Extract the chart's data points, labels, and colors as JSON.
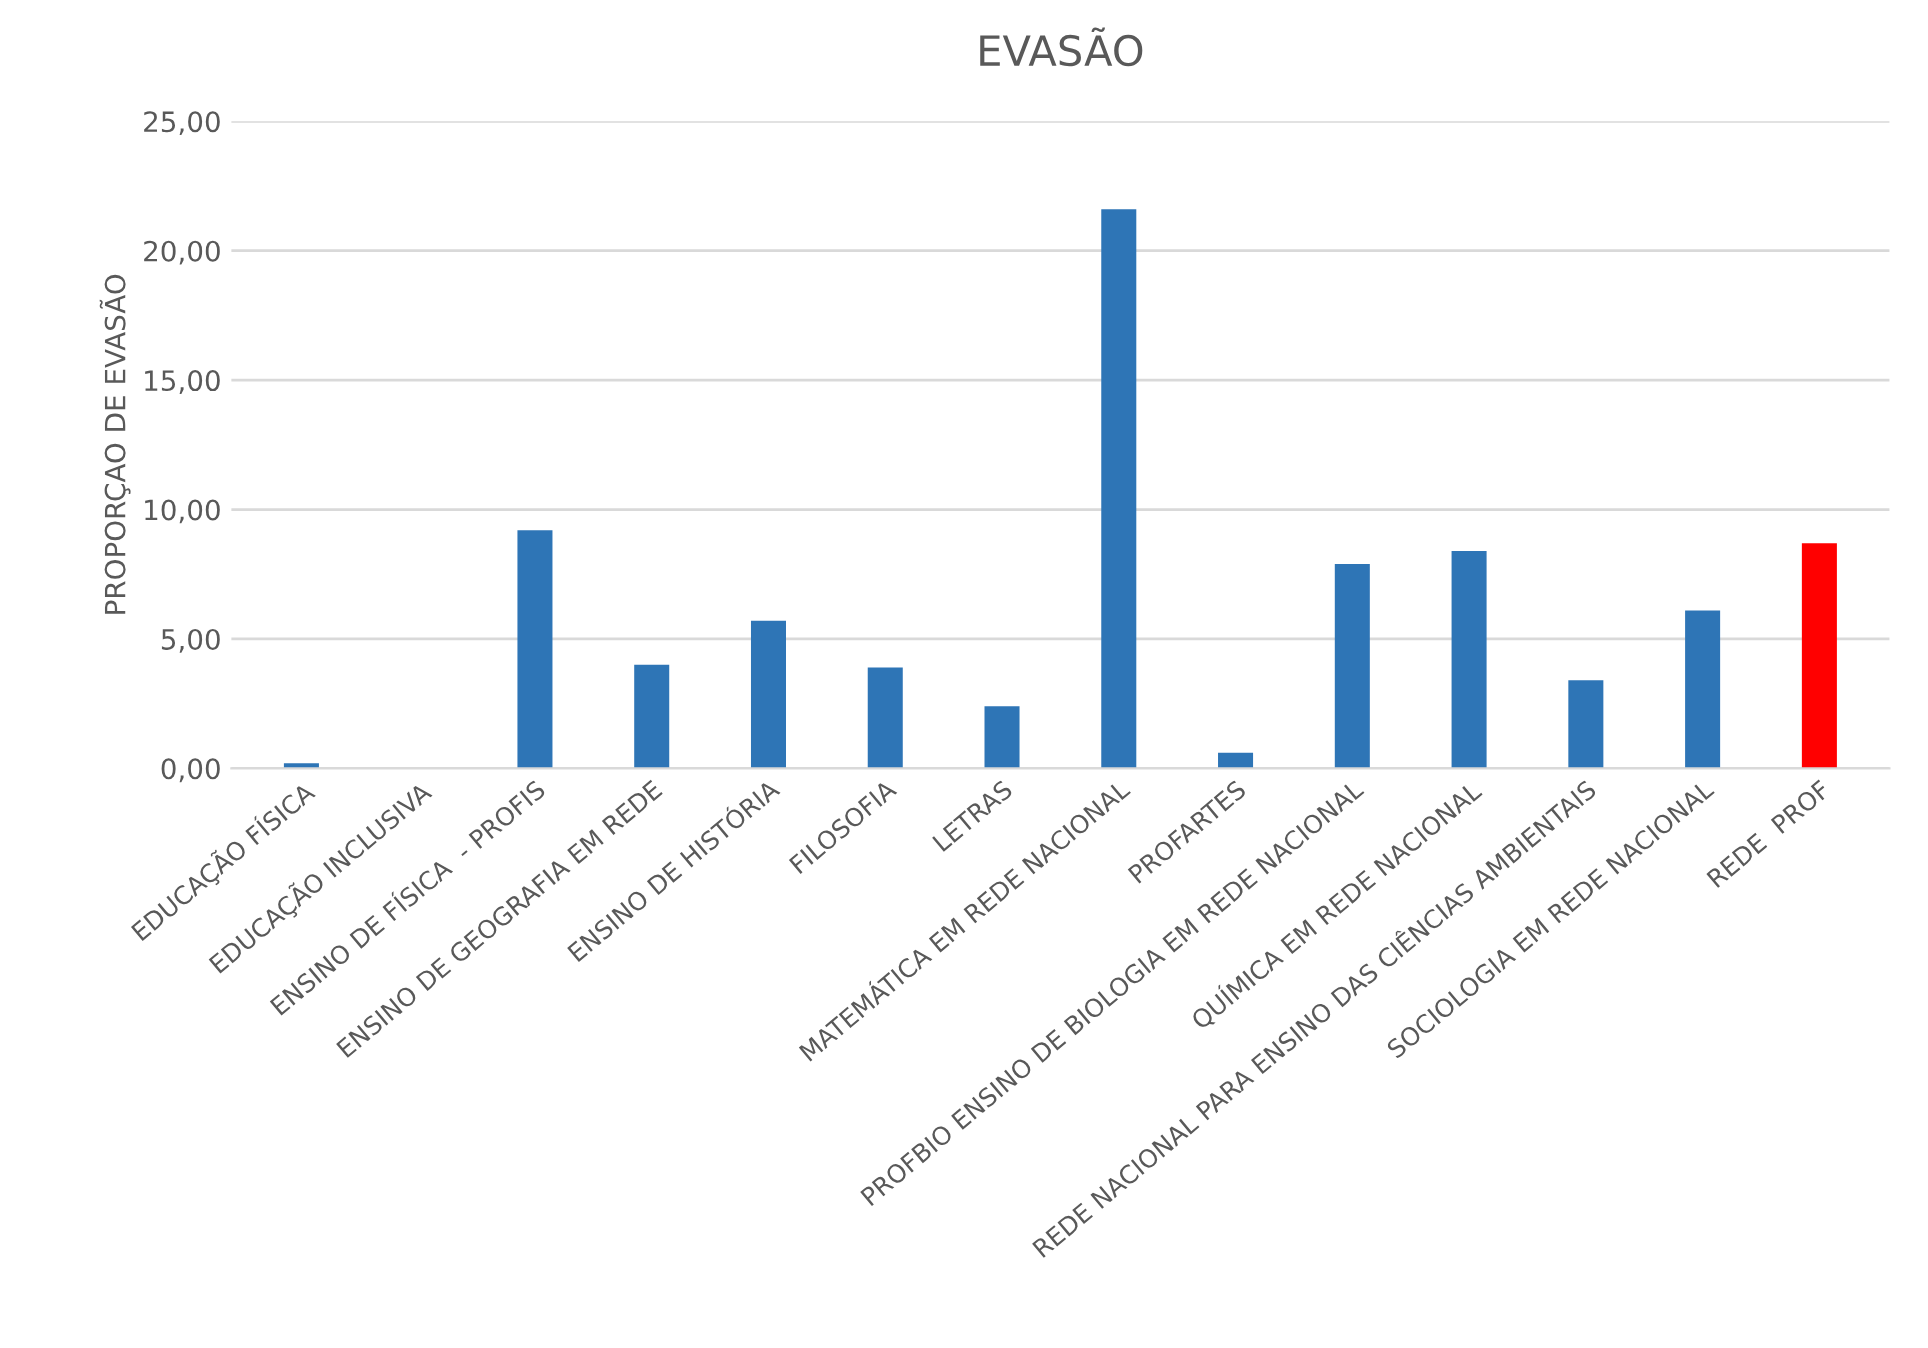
{
  "chart_data": {
    "type": "bar",
    "title": "EVASÃO",
    "ylabel": "PROPORÇAO DE EVASÃO",
    "categories": [
      "EDUCAÇÃO FÍSICA",
      "EDUCAÇÃO INCLUSIVA",
      "ENSINO DE FÍSICA  - PROFIS",
      "ENSINO DE GEOGRAFIA EM REDE",
      "ENSINO DE HISTÓRIA",
      "FILOSOFIA",
      "LETRAS",
      "MATEMÁTICA EM REDE NACIONAL",
      "PROFARTES",
      "PROFBIO ENSINO DE BIOLOGIA EM REDE NACIONAL",
      "QUÍMICA EM REDE NACIONAL",
      "REDE NACIONAL PARA ENSINO DAS CIÊNCIAS AMBIENTAIS",
      "SOCIOLOGIA EM REDE NACIONAL",
      "REDE  PROF"
    ],
    "values": [
      0.2,
      0,
      9.2,
      4.0,
      5.7,
      3.9,
      2.4,
      21.6,
      0.6,
      7.9,
      8.4,
      3.4,
      6.1,
      8.7
    ],
    "colors": [
      "#2e75b6",
      "#2e75b6",
      "#2e75b6",
      "#2e75b6",
      "#2e75b6",
      "#2e75b6",
      "#2e75b6",
      "#2e75b6",
      "#2e75b6",
      "#2e75b6",
      "#2e75b6",
      "#2e75b6",
      "#2e75b6",
      "#ff0000"
    ],
    "ylim": [
      0,
      25
    ],
    "yticks": [
      {
        "value": 0,
        "label": "0,00"
      },
      {
        "value": 5,
        "label": "5,00"
      },
      {
        "value": 10,
        "label": "10,00"
      },
      {
        "value": 15,
        "label": "15,00"
      },
      {
        "value": 20,
        "label": "20,00"
      },
      {
        "value": 25,
        "label": "25,00"
      }
    ],
    "grid": "y",
    "legend": false
  }
}
